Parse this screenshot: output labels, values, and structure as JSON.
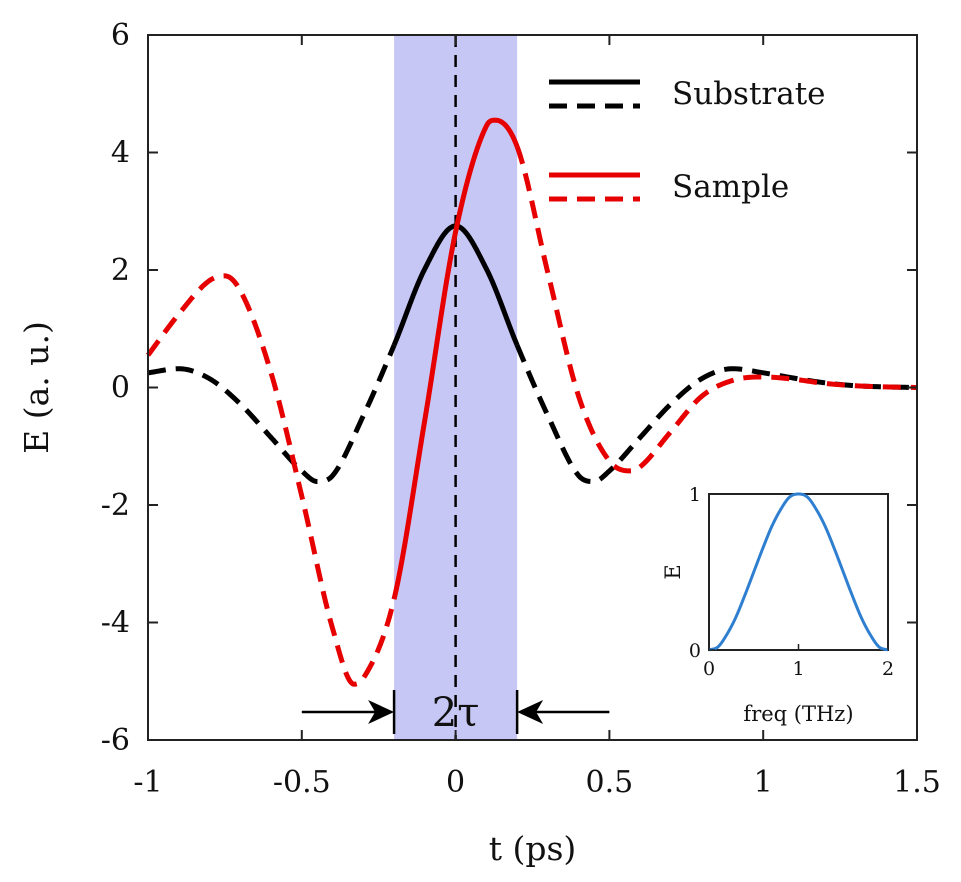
{
  "chart_data": [
    {
      "type": "line",
      "xlabel": "t (ps)",
      "ylabel": "E (a. u.)",
      "xlim": [
        -1,
        1.5
      ],
      "ylim": [
        -6,
        6
      ],
      "xticks": [
        -1,
        -0.5,
        0,
        0.5,
        1,
        1.5
      ],
      "xtick_labels": [
        "-1",
        "-0.5",
        "0",
        "0.5",
        "1",
        "1.5"
      ],
      "yticks": [
        -6,
        -4,
        -2,
        0,
        2,
        4,
        6
      ],
      "ytick_labels": [
        "-6",
        "-4",
        "-2",
        "0",
        "2",
        "4",
        "6"
      ],
      "grid": false,
      "legend_position": "top-right",
      "highlight_window": {
        "x": [
          -0.2,
          0.2
        ],
        "color": "#c7c7f6"
      },
      "vertical_dashed_line_x": 0,
      "annotation": {
        "text": "2τ",
        "arrows": "inward arrows from t = -0.5 and t = 0.5 toward the window edges at t = -0.2 and t = 0.2"
      },
      "series": [
        {
          "name": "Substrate",
          "color": "#000000",
          "style": "solid inside the shaded window, dashed outside",
          "x": [
            -1,
            -0.9,
            -0.8,
            -0.7,
            -0.6,
            -0.5,
            -0.45,
            -0.4,
            -0.3,
            -0.2,
            -0.1,
            0,
            0.1,
            0.2,
            0.3,
            0.4,
            0.45,
            0.5,
            0.6,
            0.7,
            0.8,
            0.9,
            1.0,
            1.1,
            1.2,
            1.3,
            1.4,
            1.5
          ],
          "y": [
            0.25,
            0.32,
            0.15,
            -0.28,
            -0.85,
            -1.42,
            -1.6,
            -1.5,
            -0.48,
            0.72,
            2.02,
            2.75,
            2.02,
            0.72,
            -0.48,
            -1.5,
            -1.6,
            -1.42,
            -0.85,
            -0.28,
            0.15,
            0.32,
            0.25,
            0.16,
            0.08,
            0.03,
            0.01,
            0.0
          ]
        },
        {
          "name": "Sample",
          "color": "#e60000",
          "style": "solid inside the shaded window, dashed outside",
          "x": [
            -1,
            -0.9,
            -0.8,
            -0.75,
            -0.7,
            -0.6,
            -0.5,
            -0.4,
            -0.33,
            -0.3,
            -0.2,
            -0.1,
            0,
            0.1,
            0.13,
            0.2,
            0.3,
            0.4,
            0.5,
            0.57,
            0.6,
            0.7,
            0.8,
            0.9,
            1.0,
            1.1,
            1.2,
            1.3,
            1.4,
            1.5
          ],
          "y": [
            0.55,
            1.25,
            1.82,
            1.9,
            1.65,
            0.25,
            -1.85,
            -4.1,
            -5.05,
            -4.95,
            -3.6,
            -0.55,
            2.65,
            4.45,
            4.55,
            4.1,
            1.95,
            -0.15,
            -1.25,
            -1.42,
            -1.35,
            -0.75,
            -0.15,
            0.12,
            0.18,
            0.14,
            0.07,
            0.03,
            0.01,
            0.0
          ]
        }
      ]
    },
    {
      "type": "line",
      "xlabel": "freq (THz)",
      "ylabel": "E",
      "xlim": [
        0,
        2
      ],
      "ylim": [
        0,
        1
      ],
      "xticks": [
        0,
        1,
        2
      ],
      "xtick_labels": [
        "0",
        "1",
        "2"
      ],
      "yticks": [
        0,
        1
      ],
      "ytick_labels": [
        "0",
        "1"
      ],
      "grid": false,
      "series": [
        {
          "color": "#2f7fd0",
          "x": [
            0,
            0.1,
            0.2,
            0.3,
            0.4,
            0.5,
            0.6,
            0.7,
            0.8,
            0.9,
            1.0,
            1.1,
            1.2,
            1.3,
            1.4,
            1.5,
            1.6,
            1.7,
            1.8,
            1.9,
            2.0
          ],
          "y": [
            0,
            0.02,
            0.1,
            0.21,
            0.35,
            0.5,
            0.65,
            0.79,
            0.9,
            0.98,
            1.0,
            0.98,
            0.9,
            0.79,
            0.65,
            0.5,
            0.35,
            0.21,
            0.1,
            0.02,
            0
          ]
        }
      ]
    }
  ]
}
